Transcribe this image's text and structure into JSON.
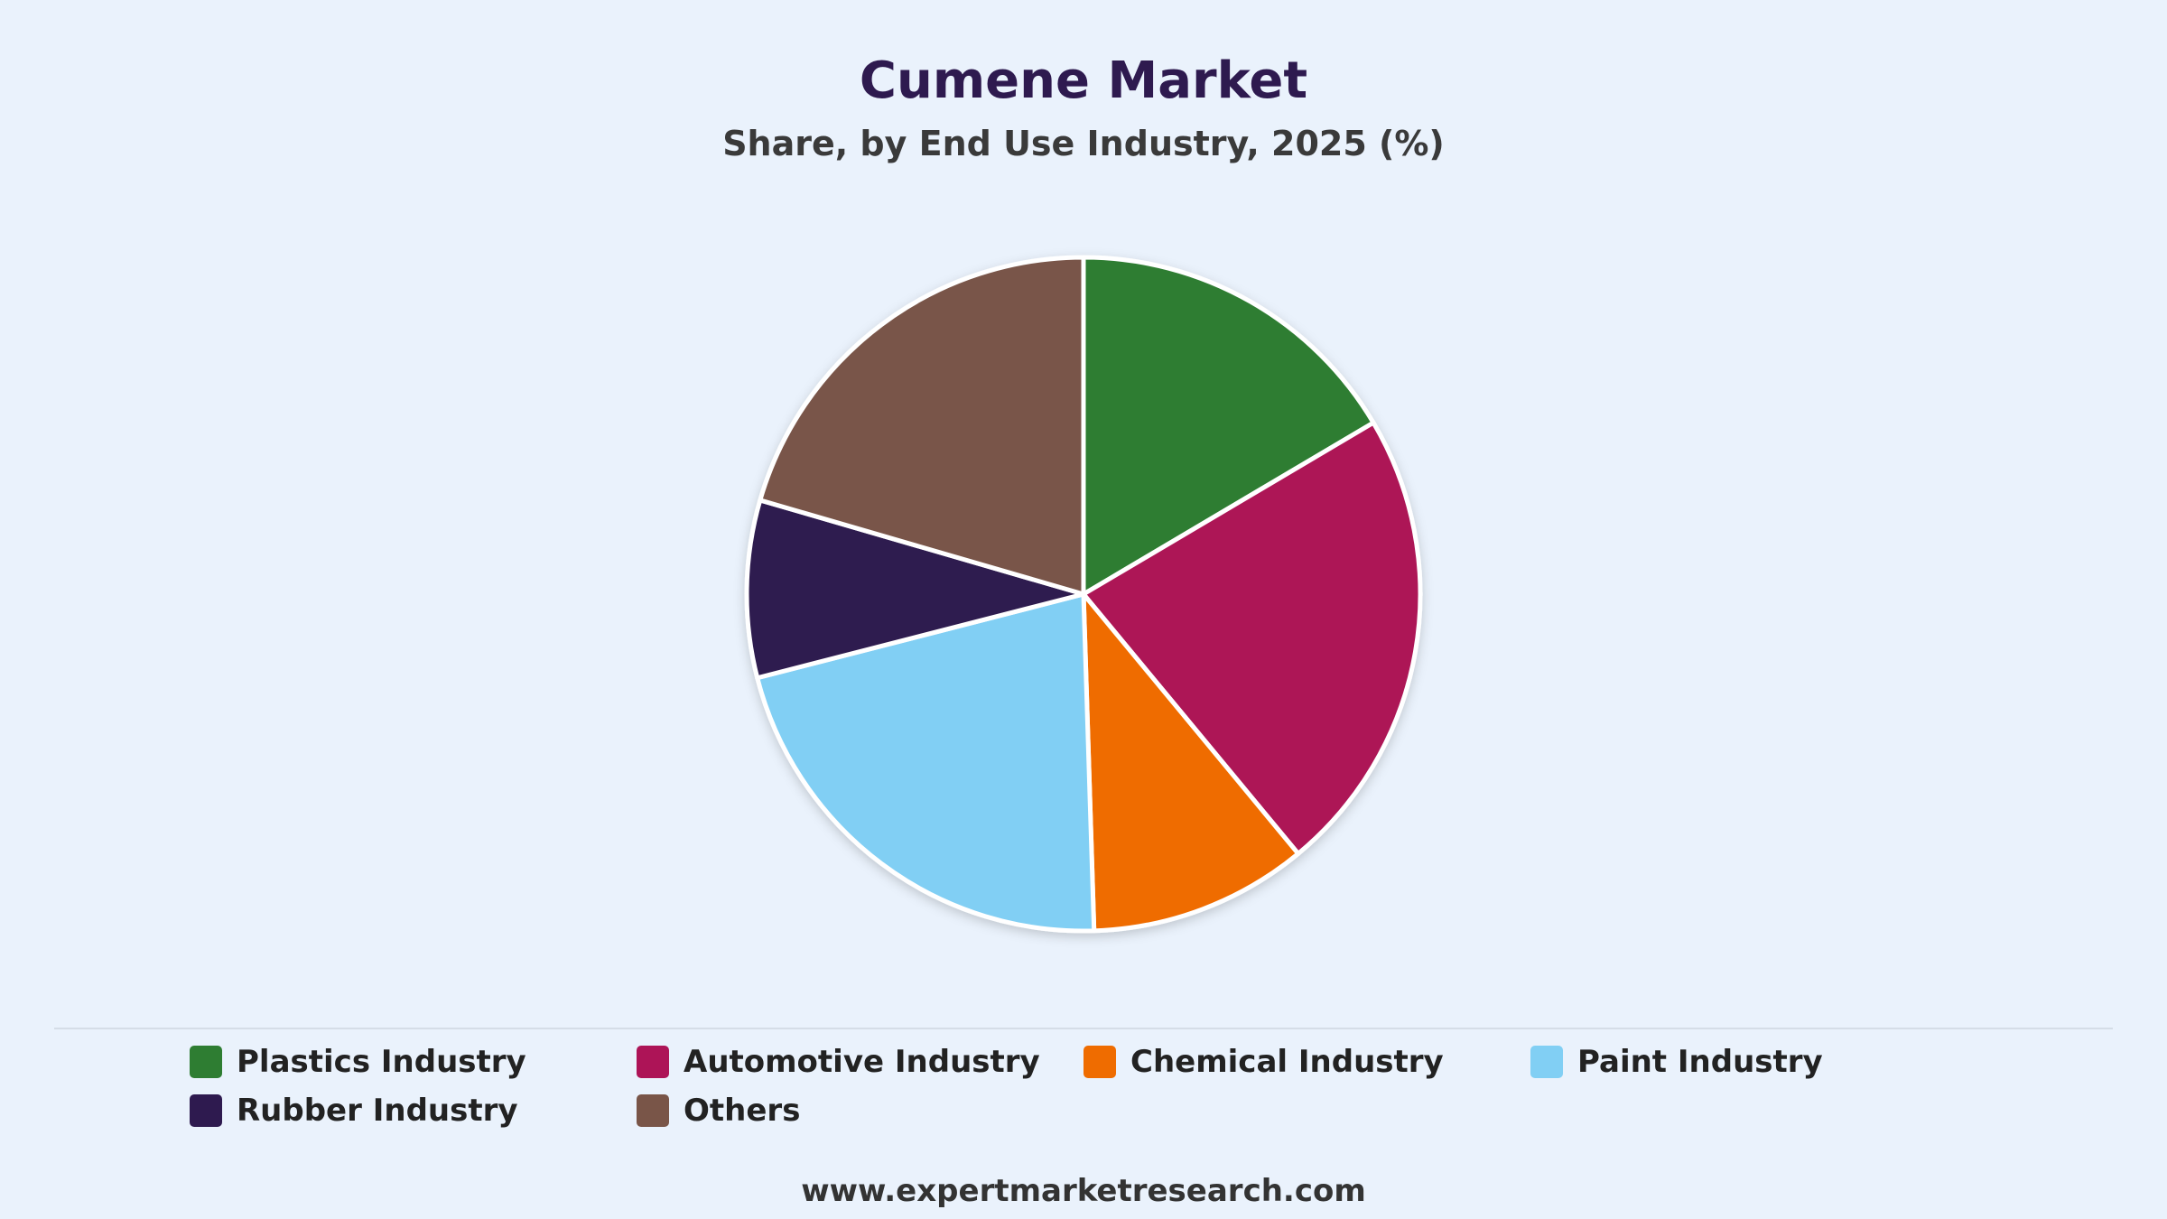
{
  "header": {
    "title": "Cumene Market",
    "subtitle": "Share, by End Use Industry, 2025 (%)"
  },
  "footer": {
    "website": "www.expertmarketresearch.com"
  },
  "legend": {
    "items": [
      {
        "label": "Plastics Industry",
        "color": "#2e7d32"
      },
      {
        "label": "Automotive Industry",
        "color": "#ad1457"
      },
      {
        "label": "Chemical Industry",
        "color": "#ef6c00"
      },
      {
        "label": "Paint Industry",
        "color": "#81cff4"
      },
      {
        "label": "Rubber Industry",
        "color": "#2e1a4f"
      },
      {
        "label": "Others",
        "color": "#795548"
      }
    ]
  },
  "chart_data": {
    "type": "pie",
    "title": "Cumene Market",
    "subtitle": "Share, by End Use Industry, 2025 (%)",
    "categories": [
      "Plastics Industry",
      "Automotive Industry",
      "Chemical Industry",
      "Paint Industry",
      "Rubber Industry",
      "Others"
    ],
    "values": [
      16.5,
      22.5,
      10.5,
      21.5,
      8.5,
      20.5
    ],
    "colors": [
      "#2e7d32",
      "#ad1457",
      "#ef6c00",
      "#81cff4",
      "#2e1a4f",
      "#795548"
    ],
    "start_angle": "12 o'clock",
    "direction": "clockwise",
    "legend_position": "bottom"
  }
}
